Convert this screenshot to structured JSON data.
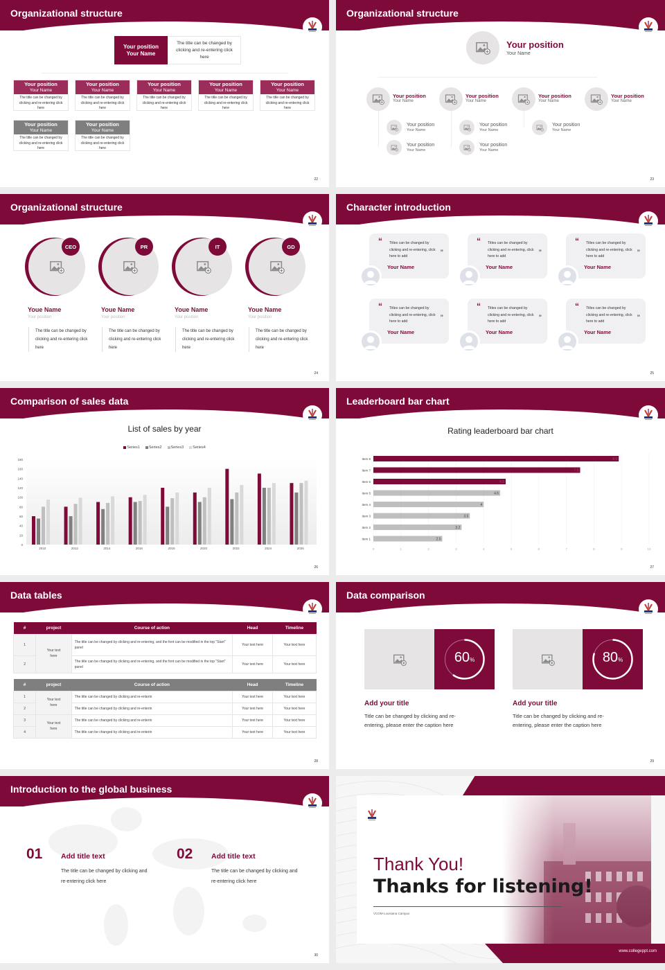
{
  "colors": {
    "primary": "#7e0a3a",
    "secondary": "#9b2d5a",
    "gray": "#7f7f7f",
    "light": "#e6e4e5"
  },
  "slides": [
    {
      "title": "Organizational structure",
      "page": "22",
      "top": {
        "position": "Your position",
        "name": "Your Name",
        "desc": "The title can be changed by clicking and re-entering click here"
      },
      "row1": [
        {
          "position": "Your position",
          "name": "Your Name",
          "desc": "The title can be changed by clicking and re-entering click here"
        },
        {
          "position": "Your position",
          "name": "Your Name",
          "desc": "The title can be changed by clicking and re-entering click here"
        },
        {
          "position": "Your position",
          "name": "Your Name",
          "desc": "The title can be changed by clicking and re-entering click here"
        },
        {
          "position": "Your position",
          "name": "Your Name",
          "desc": "The title can be changed by clicking and re-entering click here"
        },
        {
          "position": "Your position",
          "name": "Your Name",
          "desc": "The title can be changed by clicking and re-entering click here"
        }
      ],
      "row2": [
        {
          "position": "Your position",
          "name": "Your Name",
          "desc": "The title can be changed by clicking and re-entering click here"
        },
        {
          "position": "Your position",
          "name": "Your Name",
          "desc": "The title can be changed by clicking and re-entering click here"
        }
      ]
    },
    {
      "title": "Organizational structure",
      "page": "23",
      "top": {
        "position": "Your position",
        "name": "Your Name"
      },
      "level2": [
        {
          "position": "Your position",
          "name": "Your Name",
          "children": [
            {
              "position": "Your position",
              "name": "Your Name"
            },
            {
              "position": "Your position",
              "name": "Your Name"
            }
          ]
        },
        {
          "position": "Your position",
          "name": "Your Name",
          "children": [
            {
              "position": "Your position",
              "name": "Your Name"
            },
            {
              "position": "Your position",
              "name": "Your Name"
            }
          ]
        },
        {
          "position": "Your position",
          "name": "Your Name",
          "children": [
            {
              "position": "Your position",
              "name": "Your Name"
            }
          ]
        },
        {
          "position": "Your position",
          "name": "Your Name",
          "children": []
        }
      ]
    },
    {
      "title": "Organizational structure",
      "page": "24",
      "members": [
        {
          "badge": "CEO",
          "name": "Youe Name",
          "position": "Your position",
          "desc": "The title can be changed by clicking and re-entering click here"
        },
        {
          "badge": "PR",
          "name": "Youe Name",
          "position": "Your position",
          "desc": "The title can be changed by clicking and re-entering click here"
        },
        {
          "badge": "IT",
          "name": "Youe Name",
          "position": "Your position",
          "desc": "The title can be changed by clicking and re-entering click here"
        },
        {
          "badge": "GD",
          "name": "Youe Name",
          "position": "Your position",
          "desc": "The title can be changed by clicking and re-entering click here"
        }
      ]
    },
    {
      "title": "Character introduction",
      "page": "25",
      "cards": [
        {
          "quote": "Titles can be changed by clicking and re-entering, click here to add",
          "name": "Your Name"
        },
        {
          "quote": "Titles can be changed by clicking and re-entering, click here to add",
          "name": "Your Name"
        },
        {
          "quote": "Titles can be changed by clicking and re-entering, click here to add",
          "name": "Your Name"
        },
        {
          "quote": "Titles can be changed by clicking and re-entering, click here to add",
          "name": "Your Name"
        },
        {
          "quote": "Titles can be changed by clicking and re-entering, click here to add",
          "name": "Your Name"
        },
        {
          "quote": "Titles can be changed by clicking and re-entering, click here to add",
          "name": "Your Name"
        }
      ]
    },
    {
      "title": "Comparison of sales data",
      "page": "26"
    },
    {
      "title": "Leaderboard bar chart",
      "page": "27"
    },
    {
      "title": "Data tables",
      "page": "28",
      "headers": [
        "#",
        "project",
        "Course of action",
        "Head",
        "Timeline"
      ],
      "table1": {
        "group": "Your text here",
        "rows": [
          {
            "n": "1",
            "action": "The title can be changed by clicking and re-entering, and the font can be modified in the top \"Start\" panel",
            "head": "Your text here",
            "timeline": "Your text here"
          },
          {
            "n": "2",
            "action": "The title can be changed by clicking and re-entering, and the font can be modified in the top \"Start\" panel",
            "head": "Your text here",
            "timeline": "Your text here"
          }
        ]
      },
      "table2": {
        "groups": [
          "Your text here",
          "Your text here"
        ],
        "rows": [
          {
            "n": "1",
            "action": "The title can be changed by clicking and re-enterin",
            "head": "Your text here",
            "timeline": "Your text here"
          },
          {
            "n": "2",
            "action": "The title can be changed by clicking and re-enterin",
            "head": "Your text here",
            "timeline": "Your text here"
          },
          {
            "n": "3",
            "action": "The title can be changed by clicking and re-enterin",
            "head": "Your text here",
            "timeline": "Your text here"
          },
          {
            "n": "4",
            "action": "The title can be changed by clicking and re-enterin",
            "head": "Your text here",
            "timeline": "Your text here"
          }
        ]
      }
    },
    {
      "title": "Data comparison",
      "page": "29",
      "items": [
        {
          "percent": 60,
          "value": "60",
          "unit": "%",
          "title": "Add your title",
          "desc": "Title can be changed by clicking and re-entering, please enter the caption here"
        },
        {
          "percent": 80,
          "value": "80",
          "unit": "%",
          "title": "Add your title",
          "desc": "Title can be changed by clicking and re-entering, please enter the caption here"
        }
      ]
    },
    {
      "title": "Introduction to the global business",
      "page": "30",
      "items": [
        {
          "num": "01",
          "title": "Add title text",
          "desc": "The title can be changed by clicking and re-entering click here"
        },
        {
          "num": "02",
          "title": "Add title text",
          "desc": "The title can be changed by clicking and re-entering click here"
        }
      ]
    },
    {
      "thanks": "Thank You!",
      "listening": "Thanks for listening!",
      "campus": "VCOM-Louisiana Campus",
      "url": "www.collegeppt.com",
      "logo_text": "VCOM"
    }
  ],
  "chart_data": [
    {
      "type": "bar",
      "title": "List of sales by year",
      "xlabel": "",
      "ylabel": "",
      "categories": [
        "2010",
        "2012",
        "2014",
        "2016",
        "2018",
        "2020",
        "2022",
        "2024",
        "2026"
      ],
      "ylim": [
        0,
        180
      ],
      "yticks": [
        0,
        20,
        40,
        60,
        80,
        100,
        120,
        140,
        160,
        180
      ],
      "legend": "top",
      "grid": false,
      "series": [
        {
          "name": "Series1",
          "color": "#7e0a3a",
          "values": [
            60,
            80,
            90,
            100,
            120,
            110,
            160,
            150,
            130
          ]
        },
        {
          "name": "Series2",
          "color": "#808080",
          "values": [
            55,
            60,
            75,
            90,
            80,
            90,
            96,
            120,
            110
          ]
        },
        {
          "name": "Series3",
          "color": "#bfbfbf",
          "values": [
            80,
            86,
            88,
            92,
            98,
            100,
            110,
            120,
            130
          ]
        },
        {
          "name": "Series4",
          "color": "#d9d9d9",
          "values": [
            95,
            99,
            102,
            105,
            110,
            120,
            126,
            130,
            135
          ]
        }
      ]
    },
    {
      "type": "bar",
      "orientation": "horizontal",
      "title": "Rating leaderboard bar chart",
      "categories": [
        "Item 8",
        "Item 7",
        "Item 6",
        "Item 5",
        "Item 4",
        "Item 3",
        "Item 2",
        "Item 1"
      ],
      "values": [
        8.9,
        7.5,
        4.8,
        4.6,
        4,
        3.5,
        3.2,
        2.5
      ],
      "colors": [
        "#7e0a3a",
        "#7e0a3a",
        "#7e0a3a",
        "#bfbfbf",
        "#bfbfbf",
        "#bfbfbf",
        "#bfbfbf",
        "#bfbfbf"
      ],
      "data_labels": [
        "8.9",
        "7.5",
        "4.8",
        "4.6",
        "4",
        "3.5",
        "3.2",
        "2.5"
      ],
      "xlim": [
        0,
        10
      ],
      "xticks": [
        0,
        1,
        2,
        3,
        4,
        5,
        6,
        7,
        8,
        9,
        10
      ],
      "grid": true
    }
  ]
}
